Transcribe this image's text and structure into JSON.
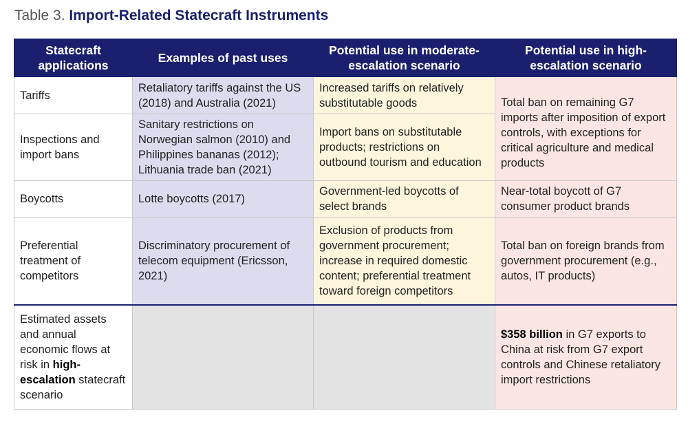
{
  "title": {
    "prefix": "Table 3. ",
    "main": "Import-Related Statecraft Instruments"
  },
  "headers": [
    "Statecraft applications",
    "Examples of past uses",
    "Potential use in moderate-escalation scenario",
    "Potential use in high-escalation scenario"
  ],
  "rows": [
    {
      "label": "Tariffs",
      "past": "Retaliatory tariffs against the US (2018) and Australia (2021)",
      "moderate": "Increased tariffs on relatively substitutable goods"
    },
    {
      "label": "Inspections and import bans",
      "past": "Sanitary restrictions on Norwegian salmon (2010) and Philippines bananas (2012); Lithuania trade ban (2021)",
      "moderate": "Import bans on substitutable products; restrictions on outbound tourism and education"
    },
    {
      "label": "Boycotts",
      "past": "Lotte boycotts (2017)",
      "moderate": "Government-led boycotts of select brands",
      "high": "Near-total boycott of G7 consumer product brands"
    },
    {
      "label": "Preferential treatment of competitors",
      "past": "Discriminatory procurement  of telecom equipment (Ericsson, 2021)",
      "moderate": "Exclusion of products from government procurement; increase in required domestic content; preferential treatment toward foreign competitors",
      "high": "Total ban on foreign brands from government procurement (e.g., autos, IT products)"
    }
  ],
  "high_merged": "Total ban on remaining G7 imports after imposition of export controls, with exceptions for critical agriculture and medical products",
  "summary": {
    "label_pre": "Estimated assets and annual economic flows at risk in ",
    "label_bold": "high-escalation",
    "label_post": " statecraft scenario",
    "amount": "$358 billion",
    "text": " in G7 exports to China at risk from G7 export controls and Chinese retaliatory import restrictions"
  }
}
